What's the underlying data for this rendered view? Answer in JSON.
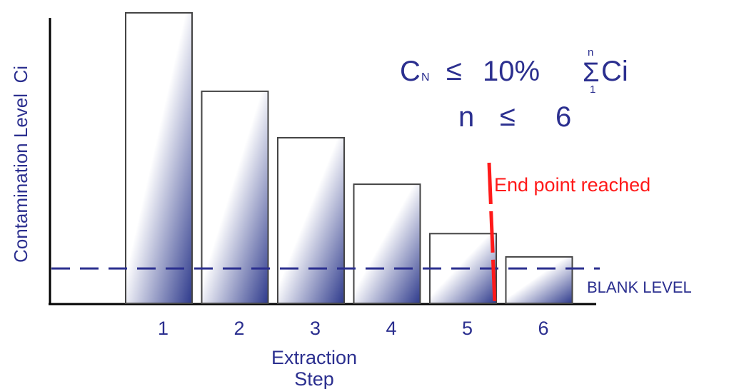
{
  "colors": {
    "ink": "#2b2f8f",
    "bar_dark": "#2e3a8c",
    "bar_light": "#ffffff",
    "endpoint": "#ff1a1a",
    "axis": "#000000"
  },
  "chart_data": {
    "type": "bar",
    "categories": [
      "1",
      "2",
      "3",
      "4",
      "5",
      "6"
    ],
    "values": [
      100,
      73,
      57,
      41,
      24,
      16
    ],
    "xlabel": [
      "Extraction",
      "Step"
    ],
    "ylabel": "Contamination Level  Ci",
    "ylim": [
      0,
      100
    ],
    "blank_level": {
      "value": 12,
      "label": "BLANK LEVEL"
    },
    "end_point": {
      "after_category": "5",
      "label": "End point reached"
    },
    "formula": {
      "line1": {
        "c": "C",
        "sub": "N",
        "le": "≤",
        "pct": "10%",
        "sigma": "Σ",
        "upper": "n",
        "lower": "1",
        "ci": "Ci"
      },
      "line2": {
        "n": "n",
        "le": "≤",
        "six": "6"
      }
    },
    "grid": false,
    "legend": "none"
  }
}
